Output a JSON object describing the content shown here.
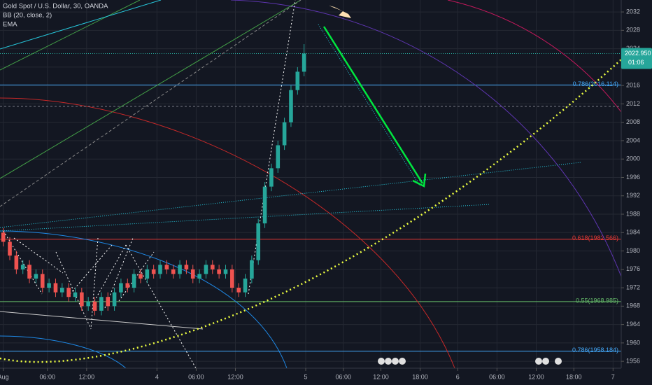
{
  "chart_data": {
    "type": "candlestick",
    "legend_lines": [
      "Gold Spot / U.S. Dollar, 30, OANDA",
      "BB (20, close, 2)",
      "EMA"
    ],
    "x": [
      1,
      3,
      5,
      7,
      9,
      11,
      13,
      15,
      17,
      19,
      21,
      23,
      25,
      27,
      29,
      31,
      33,
      35,
      37,
      39,
      41,
      43,
      45,
      47,
      49,
      51,
      53,
      55,
      57,
      59,
      61,
      63,
      65,
      67,
      69,
      71,
      73,
      75,
      77,
      79,
      81,
      83,
      85,
      87,
      89,
      91,
      93
    ],
    "open": [
      1984,
      1982,
      1979,
      1976,
      1977,
      1974,
      1975,
      1972,
      1973,
      1971,
      1972,
      1970,
      1971,
      1968,
      1969,
      1967,
      1970,
      1968,
      1971,
      1973,
      1972,
      1975,
      1974,
      1976,
      1975,
      1977,
      1976,
      1975,
      1977,
      1976,
      1974,
      1975,
      1977,
      1976,
      1975,
      1976,
      1972,
      1971,
      1974,
      1978,
      1986,
      1994,
      1998,
      2003,
      2008,
      2015,
      2019
    ],
    "high": [
      1985,
      1983,
      1980,
      1978,
      1978,
      1976,
      1976,
      1974,
      1974,
      1973,
      1973,
      1972,
      1972,
      1970,
      1970,
      1971,
      1971,
      1972,
      1974,
      1974,
      1976,
      1976,
      1977,
      1977,
      1978,
      1978,
      1977,
      1978,
      1978,
      1977,
      1976,
      1978,
      1978,
      1977,
      1977,
      1977,
      1973,
      1975,
      1979,
      1987,
      1995,
      1999,
      2004,
      2009,
      2016,
      2020,
      2025
    ],
    "low": [
      1981,
      1978,
      1975,
      1975,
      1973,
      1973,
      1971,
      1971,
      1970,
      1970,
      1969,
      1969,
      1967,
      1967,
      1966,
      1966,
      1967,
      1967,
      1970,
      1971,
      1971,
      1973,
      1973,
      1974,
      1974,
      1975,
      1974,
      1974,
      1975,
      1973,
      1973,
      1974,
      1975,
      1974,
      1974,
      1971,
      1970,
      1970,
      1973,
      1977,
      1985,
      1993,
      1997,
      2002,
      2007,
      2014,
      2018
    ],
    "close": [
      1982,
      1979,
      1976,
      1977,
      1974,
      1975,
      1972,
      1973,
      1971,
      1972,
      1970,
      1971,
      1968,
      1969,
      1967,
      1970,
      1968,
      1971,
      1973,
      1972,
      1975,
      1974,
      1976,
      1975,
      1977,
      1976,
      1975,
      1977,
      1976,
      1974,
      1975,
      1977,
      1976,
      1975,
      1976,
      1972,
      1971,
      1974,
      1978,
      1986,
      1994,
      1998,
      2003,
      2008,
      2015,
      2019,
      2022.95
    ],
    "up_color": "#26a69a",
    "down_color": "#ef5350",
    "xlim": [
      0,
      190
    ],
    "xticks": [
      {
        "value": 1,
        "label": "Aug"
      },
      {
        "value": 14.5,
        "label": "06:00"
      },
      {
        "value": 26.5,
        "label": "12:00"
      },
      {
        "value": 48,
        "label": "4"
      },
      {
        "value": 60,
        "label": "06:00"
      },
      {
        "value": 72,
        "label": "12:00"
      },
      {
        "value": 93.5,
        "label": "5"
      },
      {
        "value": 105,
        "label": "06:00"
      },
      {
        "value": 116.5,
        "label": "12:00"
      },
      {
        "value": 128.5,
        "label": "18:00"
      },
      {
        "value": 140,
        "label": "6"
      },
      {
        "value": 152,
        "label": "06:00"
      },
      {
        "value": 164,
        "label": "12:00"
      },
      {
        "value": 175.5,
        "label": "18:00"
      },
      {
        "value": 187.5,
        "label": "7"
      }
    ],
    "ylim": [
      1954.5,
      2034.6
    ],
    "yticks": [
      1956,
      1960,
      1964,
      1968,
      1972,
      1976,
      1980,
      1984,
      1988,
      1992,
      1996,
      2000,
      2004,
      2008,
      2012,
      2016,
      2020,
      2024,
      2028,
      2032
    ],
    "grid": true,
    "levels": [
      {
        "value": 2016.114,
        "label": "0.786(2016.114)",
        "color": "#42a5f5"
      },
      {
        "value": 1982.566,
        "label": "0.618(1982.566)",
        "color": "#e53935"
      },
      {
        "value": 1968.985,
        "label": "0.55(1968.985)",
        "color": "#66bb6a"
      },
      {
        "value": 1958.184,
        "label": "0.786(1958.184)",
        "color": "#42a5f5"
      }
    ],
    "last_price": {
      "value": 2022.95,
      "label": "2022.950"
    },
    "countdown": "01:06"
  }
}
